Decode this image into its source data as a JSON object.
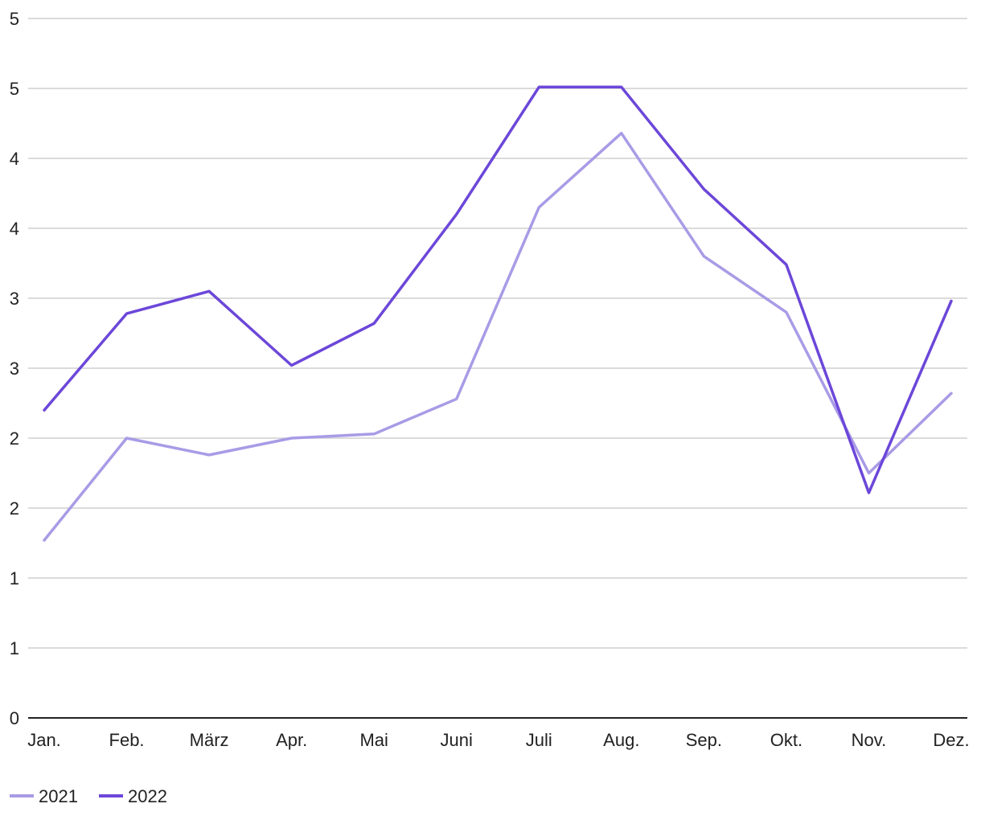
{
  "chart_data": {
    "type": "line",
    "title": "",
    "xlabel": "",
    "ylabel": "",
    "categories": [
      "Jan.",
      "Feb.",
      "März",
      "Apr.",
      "Mai",
      "Juni",
      "Juli",
      "Aug.",
      "Sep.",
      "Okt.",
      "Nov.",
      "Dez."
    ],
    "y_tick_values": [
      0,
      0.5,
      1,
      1.5,
      2,
      2.5,
      3,
      3.5,
      4,
      4.5,
      5
    ],
    "y_tick_labels": [
      "0",
      "1",
      "1",
      "2",
      "2",
      "3",
      "3",
      "4",
      "4",
      "5",
      "5"
    ],
    "ylim": [
      0,
      5
    ],
    "grid": true,
    "legend_position": "bottom-left",
    "series": [
      {
        "name": "2021",
        "color": "#a99be6",
        "values": [
          1.27,
          2.0,
          1.88,
          2.0,
          2.03,
          2.28,
          3.65,
          4.18,
          3.3,
          2.9,
          1.75,
          2.32
        ]
      },
      {
        "name": "2022",
        "color": "#6c47d9",
        "values": [
          2.2,
          2.89,
          3.05,
          2.52,
          2.82,
          3.6,
          4.51,
          4.51,
          3.78,
          3.24,
          1.61,
          2.98
        ]
      }
    ]
  }
}
